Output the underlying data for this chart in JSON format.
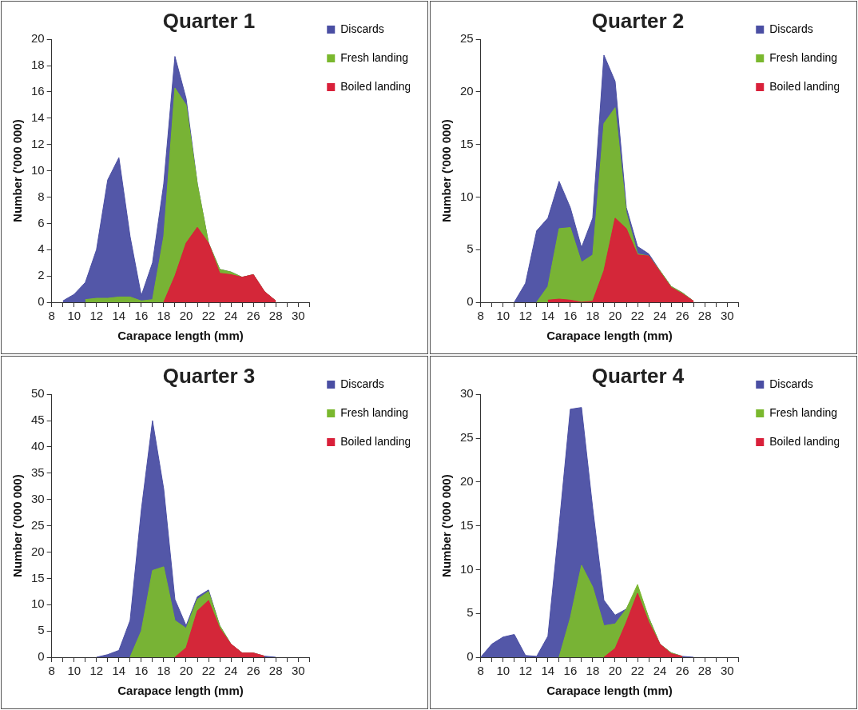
{
  "chart_data": [
    {
      "type": "area",
      "title": "Quarter 1",
      "xlabel": "Carapace length (mm)",
      "ylabel": "Number ('000 000)",
      "legend": "right",
      "xlim": [
        8,
        31
      ],
      "xticks": [
        8,
        {
          "value": 9,
          "label": null
        },
        10,
        {
          "value": 11,
          "label": null
        },
        12,
        {
          "value": 13,
          "label": null
        },
        14,
        {
          "value": 15,
          "label": null
        },
        16,
        {
          "value": 17,
          "label": null
        },
        18,
        {
          "value": 19,
          "label": null
        },
        20,
        {
          "value": 21,
          "label": null
        },
        22,
        {
          "value": 23,
          "label": null
        },
        24,
        {
          "value": 25,
          "label": null
        },
        26,
        {
          "value": 27,
          "label": null
        },
        28,
        {
          "value": 29,
          "label": null
        },
        30,
        {
          "value": 31,
          "label": null
        }
      ],
      "ylim": [
        0,
        20
      ],
      "yticks": [
        0,
        2,
        4,
        6,
        8,
        10,
        12,
        14,
        16,
        18,
        20
      ],
      "series": [
        {
          "name": "Discards",
          "color": "#4a4ea3",
          "x": [
            9,
            10,
            11,
            12,
            13,
            14,
            15,
            16,
            17,
            18,
            19,
            20,
            21,
            22,
            23,
            24,
            25,
            26,
            27,
            28
          ],
          "values": [
            0.1,
            0.6,
            1.5,
            4,
            9.3,
            11,
            5,
            0.5,
            3,
            9,
            18.7,
            15.5,
            9,
            4.5,
            2.5,
            2.3,
            1.9,
            2.1,
            0.8,
            0.1
          ]
        },
        {
          "name": "Fresh landing",
          "color": "#7ab82e",
          "x": [
            11,
            12,
            13,
            14,
            15,
            16,
            17,
            18,
            19,
            20,
            21,
            22,
            23,
            24,
            25,
            26,
            27,
            28
          ],
          "values": [
            0.2,
            0.3,
            0.3,
            0.4,
            0.4,
            0.1,
            0.2,
            5,
            16.3,
            15,
            9,
            4.5,
            2.5,
            2.3,
            1.9,
            2.1,
            0.8,
            0.1
          ]
        },
        {
          "name": "Boiled landing",
          "color": "#d9203a",
          "x": [
            18,
            19,
            20,
            21,
            22,
            23,
            24,
            25,
            26,
            27,
            28
          ],
          "values": [
            0,
            2,
            4.5,
            5.7,
            4.5,
            2.2,
            2.1,
            1.9,
            2.1,
            0.8,
            0.1
          ]
        }
      ]
    },
    {
      "type": "area",
      "title": "Quarter 2",
      "xlabel": "Carapace length (mm)",
      "ylabel": "Number ('000 000)",
      "legend": "right",
      "xlim": [
        8,
        31
      ],
      "xticks": [
        8,
        {
          "value": 9,
          "label": null
        },
        10,
        {
          "value": 11,
          "label": null
        },
        12,
        {
          "value": 13,
          "label": null
        },
        14,
        {
          "value": 15,
          "label": null
        },
        16,
        {
          "value": 17,
          "label": null
        },
        18,
        {
          "value": 19,
          "label": null
        },
        20,
        {
          "value": 21,
          "label": null
        },
        22,
        {
          "value": 23,
          "label": null
        },
        24,
        {
          "value": 25,
          "label": null
        },
        26,
        {
          "value": 27,
          "label": null
        },
        28,
        {
          "value": 29,
          "label": null
        },
        30,
        {
          "value": 31,
          "label": null
        }
      ],
      "ylim": [
        0,
        25
      ],
      "yticks": [
        0,
        5,
        10,
        15,
        20,
        25
      ],
      "series": [
        {
          "name": "Discards",
          "color": "#4a4ea3",
          "x": [
            11,
            12,
            13,
            14,
            15,
            16,
            17,
            18,
            19,
            20,
            21,
            22,
            23,
            24,
            25,
            26,
            27
          ],
          "values": [
            0,
            1.8,
            6.8,
            8,
            11.5,
            9,
            5.2,
            8,
            23.5,
            21,
            9,
            5.3,
            4.6,
            3,
            1.5,
            0.9,
            0.1
          ]
        },
        {
          "name": "Fresh landing",
          "color": "#7ab82e",
          "x": [
            13,
            14,
            15,
            16,
            17,
            18,
            19,
            20,
            21,
            22,
            23,
            24,
            25,
            26,
            27
          ],
          "values": [
            0,
            1.5,
            7,
            7.1,
            3.8,
            4.5,
            17,
            18.5,
            8.5,
            4.6,
            4.4,
            3,
            1.5,
            0.9,
            0.1
          ]
        },
        {
          "name": "Boiled landing",
          "color": "#d9203a",
          "x": [
            14,
            15,
            16,
            17,
            18,
            19,
            20,
            21,
            22,
            23,
            24,
            25,
            26,
            27
          ],
          "values": [
            0.2,
            0.3,
            0.2,
            0,
            0.1,
            3,
            8,
            7,
            4.5,
            4.4,
            2.9,
            1.4,
            0.8,
            0.1
          ]
        }
      ]
    },
    {
      "type": "area",
      "title": "Quarter 3",
      "xlabel": "Carapace length (mm)",
      "ylabel": "Number ('000 000)",
      "legend": "right",
      "xlim": [
        8,
        31
      ],
      "xticks": [
        8,
        {
          "value": 9,
          "label": null
        },
        10,
        {
          "value": 11,
          "label": null
        },
        12,
        {
          "value": 13,
          "label": null
        },
        14,
        {
          "value": 15,
          "label": null
        },
        16,
        {
          "value": 17,
          "label": null
        },
        18,
        {
          "value": 19,
          "label": null
        },
        20,
        {
          "value": 21,
          "label": null
        },
        22,
        {
          "value": 23,
          "label": null
        },
        24,
        {
          "value": 25,
          "label": null
        },
        26,
        {
          "value": 27,
          "label": null
        },
        28,
        {
          "value": 29,
          "label": null
        },
        30,
        {
          "value": 31,
          "label": null
        }
      ],
      "ylim": [
        0,
        50
      ],
      "yticks": [
        0,
        5,
        10,
        15,
        20,
        25,
        30,
        35,
        40,
        45,
        50
      ],
      "series": [
        {
          "name": "Discards",
          "color": "#4a4ea3",
          "x": [
            12,
            13,
            14,
            15,
            16,
            17,
            18,
            19,
            20,
            21,
            22,
            23,
            24,
            25,
            26,
            27,
            28
          ],
          "values": [
            0,
            0.5,
            1.3,
            7,
            28,
            45,
            32,
            11,
            6,
            11.5,
            12.8,
            6,
            2.5,
            0.8,
            0.8,
            0.2,
            0
          ]
        },
        {
          "name": "Fresh landing",
          "color": "#7ab82e",
          "x": [
            15,
            16,
            17,
            18,
            19,
            20,
            21,
            22,
            23,
            24,
            25,
            26,
            27
          ],
          "values": [
            0,
            5,
            16.5,
            17.2,
            7,
            5.5,
            11,
            12.5,
            6,
            2.5,
            0.8,
            0.8,
            0.2
          ]
        },
        {
          "name": "Boiled landing",
          "color": "#d9203a",
          "x": [
            19,
            20,
            21,
            22,
            23,
            24,
            25,
            26,
            27
          ],
          "values": [
            0,
            1.8,
            8.8,
            10.8,
            5.5,
            2.5,
            0.8,
            0.8,
            0.2
          ]
        }
      ]
    },
    {
      "type": "area",
      "title": "Quarter 4",
      "xlabel": "Carapace length (mm)",
      "ylabel": "Number ('000 000)",
      "legend": "right",
      "xlim": [
        8,
        31
      ],
      "xticks": [
        8,
        {
          "value": 9,
          "label": null
        },
        10,
        {
          "value": 11,
          "label": null
        },
        12,
        {
          "value": 13,
          "label": null
        },
        14,
        {
          "value": 15,
          "label": null
        },
        16,
        {
          "value": 17,
          "label": null
        },
        18,
        {
          "value": 19,
          "label": null
        },
        20,
        {
          "value": 21,
          "label": null
        },
        22,
        {
          "value": 23,
          "label": null
        },
        24,
        {
          "value": 25,
          "label": null
        },
        26,
        {
          "value": 27,
          "label": null
        },
        28,
        {
          "value": 29,
          "label": null
        },
        30,
        {
          "value": 31,
          "label": null
        }
      ],
      "ylim": [
        0,
        30
      ],
      "yticks": [
        0,
        5,
        10,
        15,
        20,
        25,
        30
      ],
      "series": [
        {
          "name": "Discards",
          "color": "#4a4ea3",
          "x": [
            8,
            9,
            10,
            11,
            12,
            13,
            14,
            15,
            16,
            17,
            18,
            19,
            20,
            21,
            22,
            23,
            24,
            25,
            26,
            27
          ],
          "values": [
            0,
            1.5,
            2.3,
            2.6,
            0.2,
            0.1,
            2.4,
            15,
            28.3,
            28.5,
            17,
            6.5,
            4.8,
            5.5,
            8,
            4.5,
            1.5,
            0.5,
            0.1,
            0
          ]
        },
        {
          "name": "Fresh landing",
          "color": "#7ab82e",
          "x": [
            15,
            16,
            17,
            18,
            19,
            20,
            21,
            22,
            23,
            24,
            25,
            26
          ],
          "values": [
            0,
            4.5,
            10.5,
            8,
            3.6,
            3.8,
            5.5,
            8.3,
            4.5,
            1.5,
            0.5,
            0.1
          ]
        },
        {
          "name": "Boiled landing",
          "color": "#d9203a",
          "x": [
            19,
            20,
            21,
            22,
            23,
            24,
            25,
            26
          ],
          "values": [
            0,
            1,
            4,
            7.3,
            4,
            1.5,
            0.4,
            0.1
          ]
        }
      ]
    }
  ]
}
